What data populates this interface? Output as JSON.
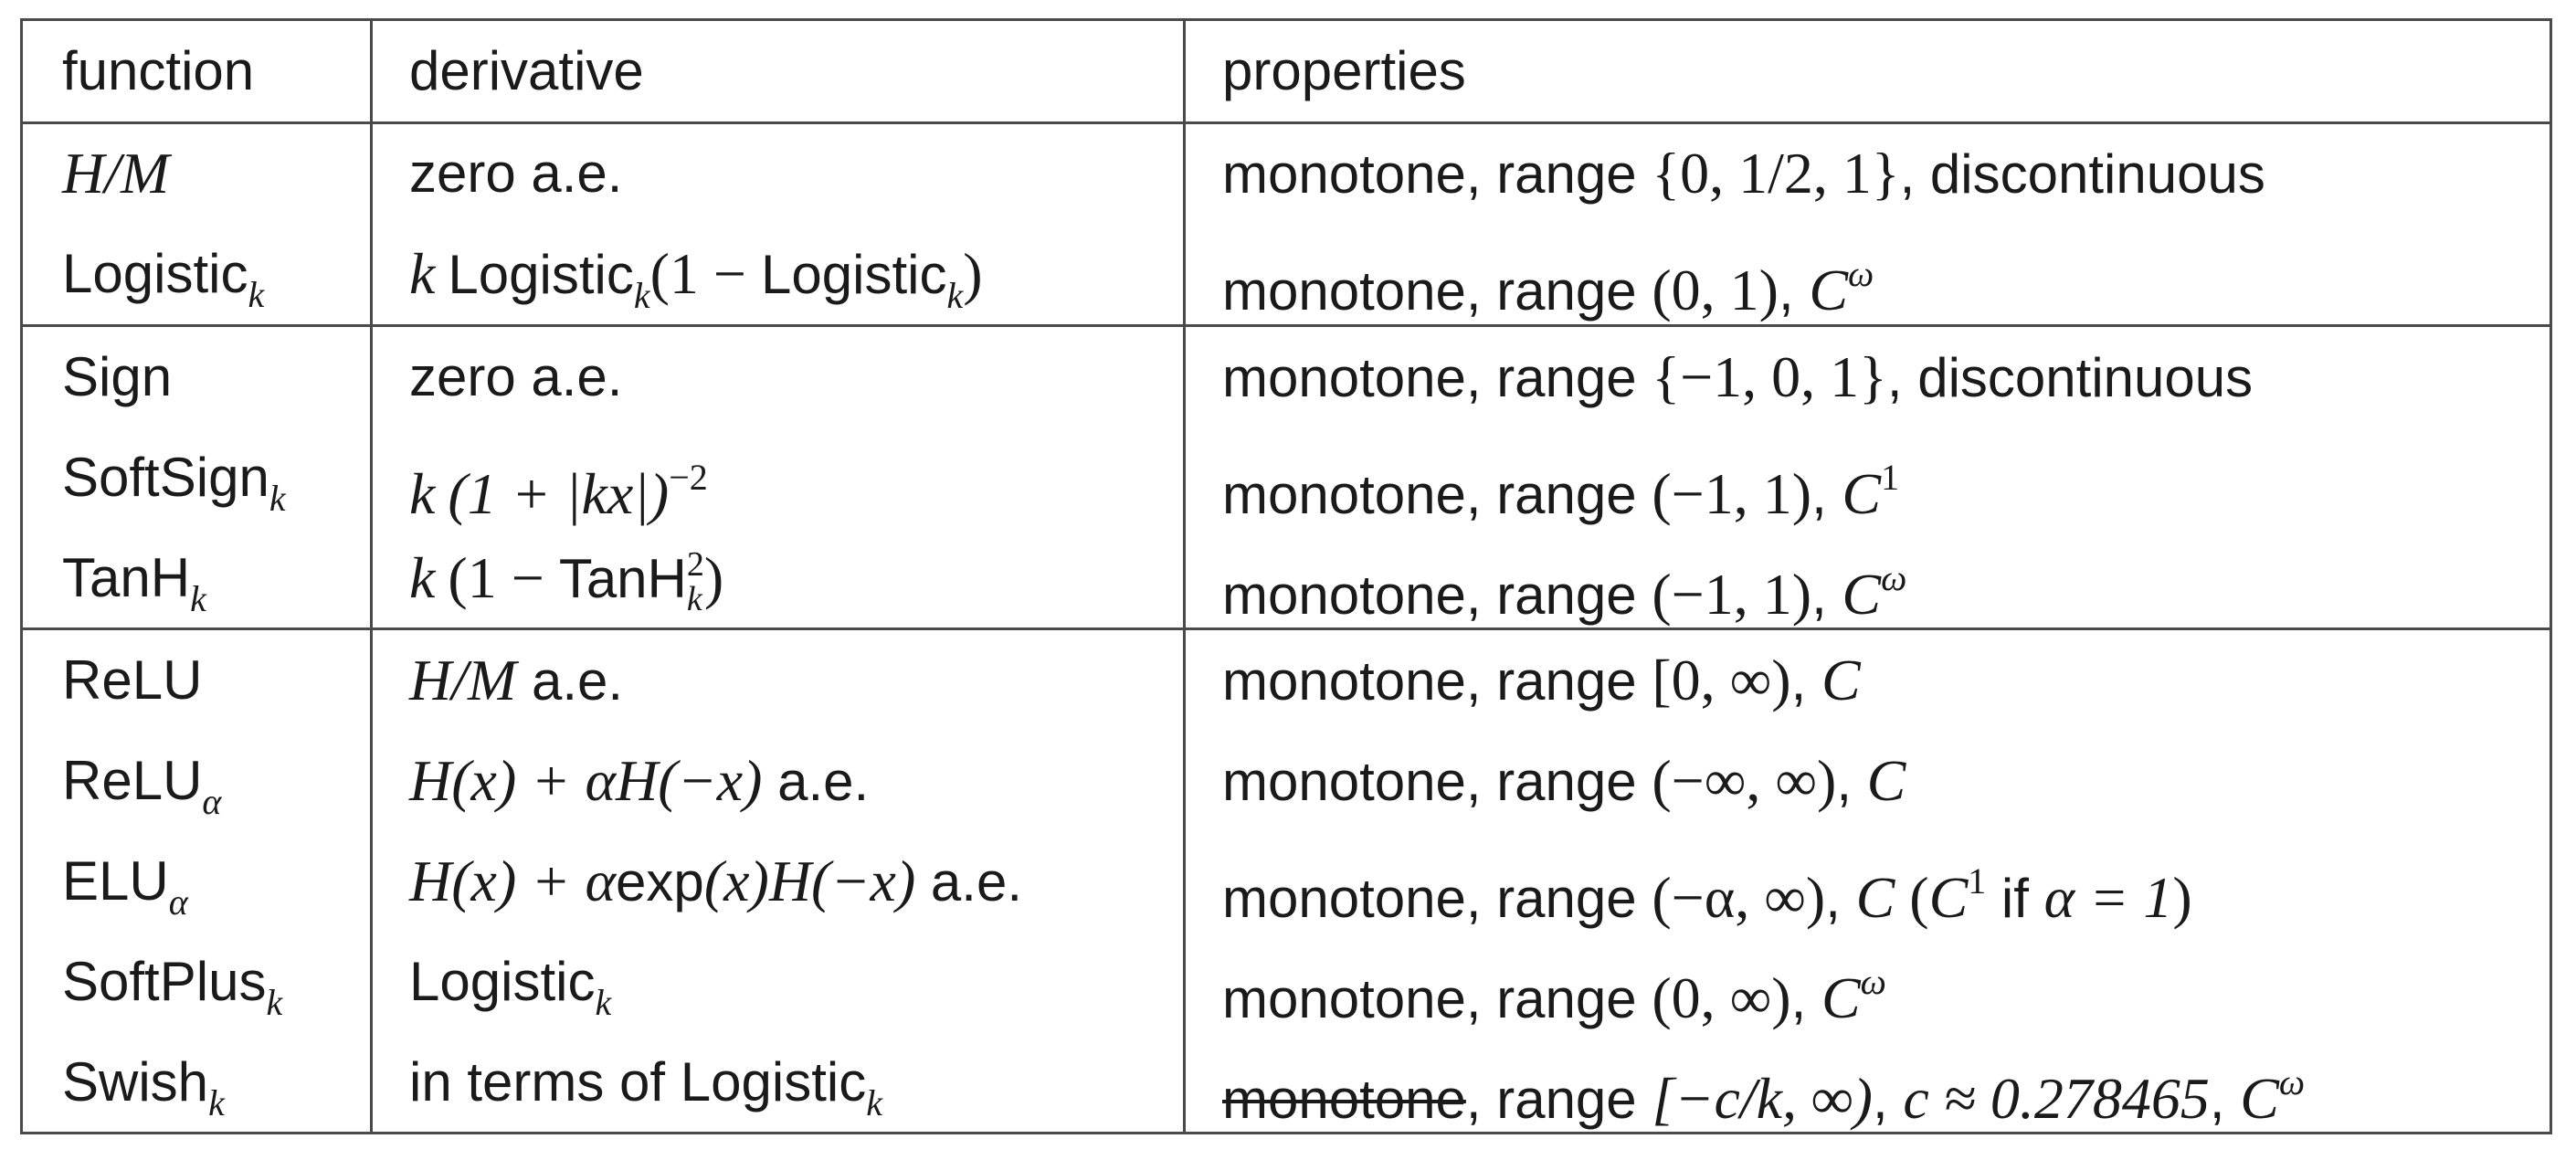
{
  "table": {
    "headers": [
      "function",
      "derivative",
      "properties"
    ],
    "rows": [
      {
        "function": {
          "name": "H/M"
        },
        "derivative": {
          "text": "zero a.e."
        },
        "properties": {
          "prefix": "monotone, range ",
          "range": "{0, 1/2, 1}",
          "suffix": ", discontinuous"
        }
      },
      {
        "function": {
          "name": "Logistic",
          "sub": "k"
        },
        "derivative": {
          "coef": "k",
          "name": "Logistic",
          "sub": "k",
          "open": "(1 − ",
          "name2": "Logistic",
          "sub2": "k",
          "close": ")"
        },
        "properties": {
          "prefix": "monotone, range ",
          "range": "(0, 1)",
          "sep": ", ",
          "class": "C",
          "class_sup": "ω"
        }
      },
      {
        "function": {
          "name": "Sign"
        },
        "derivative": {
          "text": "zero a.e."
        },
        "properties": {
          "prefix": "monotone, range ",
          "range": "{−1, 0, 1}",
          "suffix": ", discontinuous"
        }
      },
      {
        "function": {
          "name": "SoftSign",
          "sub": "k"
        },
        "derivative": {
          "coef": "k",
          "expr": "(1 + |kx|)",
          "exp": "−2"
        },
        "properties": {
          "prefix": "monotone, range ",
          "range": "(−1, 1)",
          "sep": ", ",
          "class": "C",
          "class_sup": "1"
        }
      },
      {
        "function": {
          "name": "TanH",
          "sub": "k"
        },
        "derivative": {
          "coef": "k",
          "open": "(1 − ",
          "name": "TanH",
          "sup": "2",
          "sub": "k",
          "close": ")"
        },
        "properties": {
          "prefix": "monotone, range ",
          "range": "(−1, 1)",
          "sep": ", ",
          "class": "C",
          "class_sup": "ω"
        }
      },
      {
        "function": {
          "name": "ReLU"
        },
        "derivative": {
          "math": "H/M",
          "suffix": " a.e."
        },
        "properties": {
          "prefix": "monotone, range ",
          "range": "[0, ∞)",
          "sep": ", ",
          "class": "C"
        }
      },
      {
        "function": {
          "name": "ReLU",
          "sub": "α"
        },
        "derivative": {
          "math": "H(x) + αH(−x)",
          "suffix": " a.e."
        },
        "properties": {
          "prefix": "monotone, range ",
          "range": "(−∞, ∞)",
          "sep": ", ",
          "class": "C"
        }
      },
      {
        "function": {
          "name": "ELU",
          "sub": "α"
        },
        "derivative": {
          "m1": "H(x) + α",
          "word": "exp",
          "m2": "(x)H(−x)",
          "suffix": " a.e."
        },
        "properties": {
          "prefix": "monotone, range ",
          "range": "(−α, ∞)",
          "sep": ", ",
          "class": "C",
          "paren_open": " (",
          "class2": "C",
          "class2_sup": "1",
          "if_word": " if ",
          "cond": "α = 1",
          "paren_close": ")"
        }
      },
      {
        "function": {
          "name": "SoftPlus",
          "sub": "k"
        },
        "derivative": {
          "name": "Logistic",
          "sub": "k"
        },
        "properties": {
          "prefix": "monotone, range ",
          "range": "(0, ∞)",
          "sep": ", ",
          "class": "C",
          "class_sup": "ω"
        }
      },
      {
        "function": {
          "name": "Swish",
          "sub": "k"
        },
        "derivative": {
          "prefix": "in terms of ",
          "name": "Logistic",
          "sub": "k"
        },
        "properties": {
          "struck": "monotone",
          "prefix": ", range ",
          "range": "[−c/k, ∞)",
          "sep": ", ",
          "const": "c ≈ 0.278465",
          "sep2": ", ",
          "class": "C",
          "class_sup": "ω"
        }
      }
    ]
  }
}
